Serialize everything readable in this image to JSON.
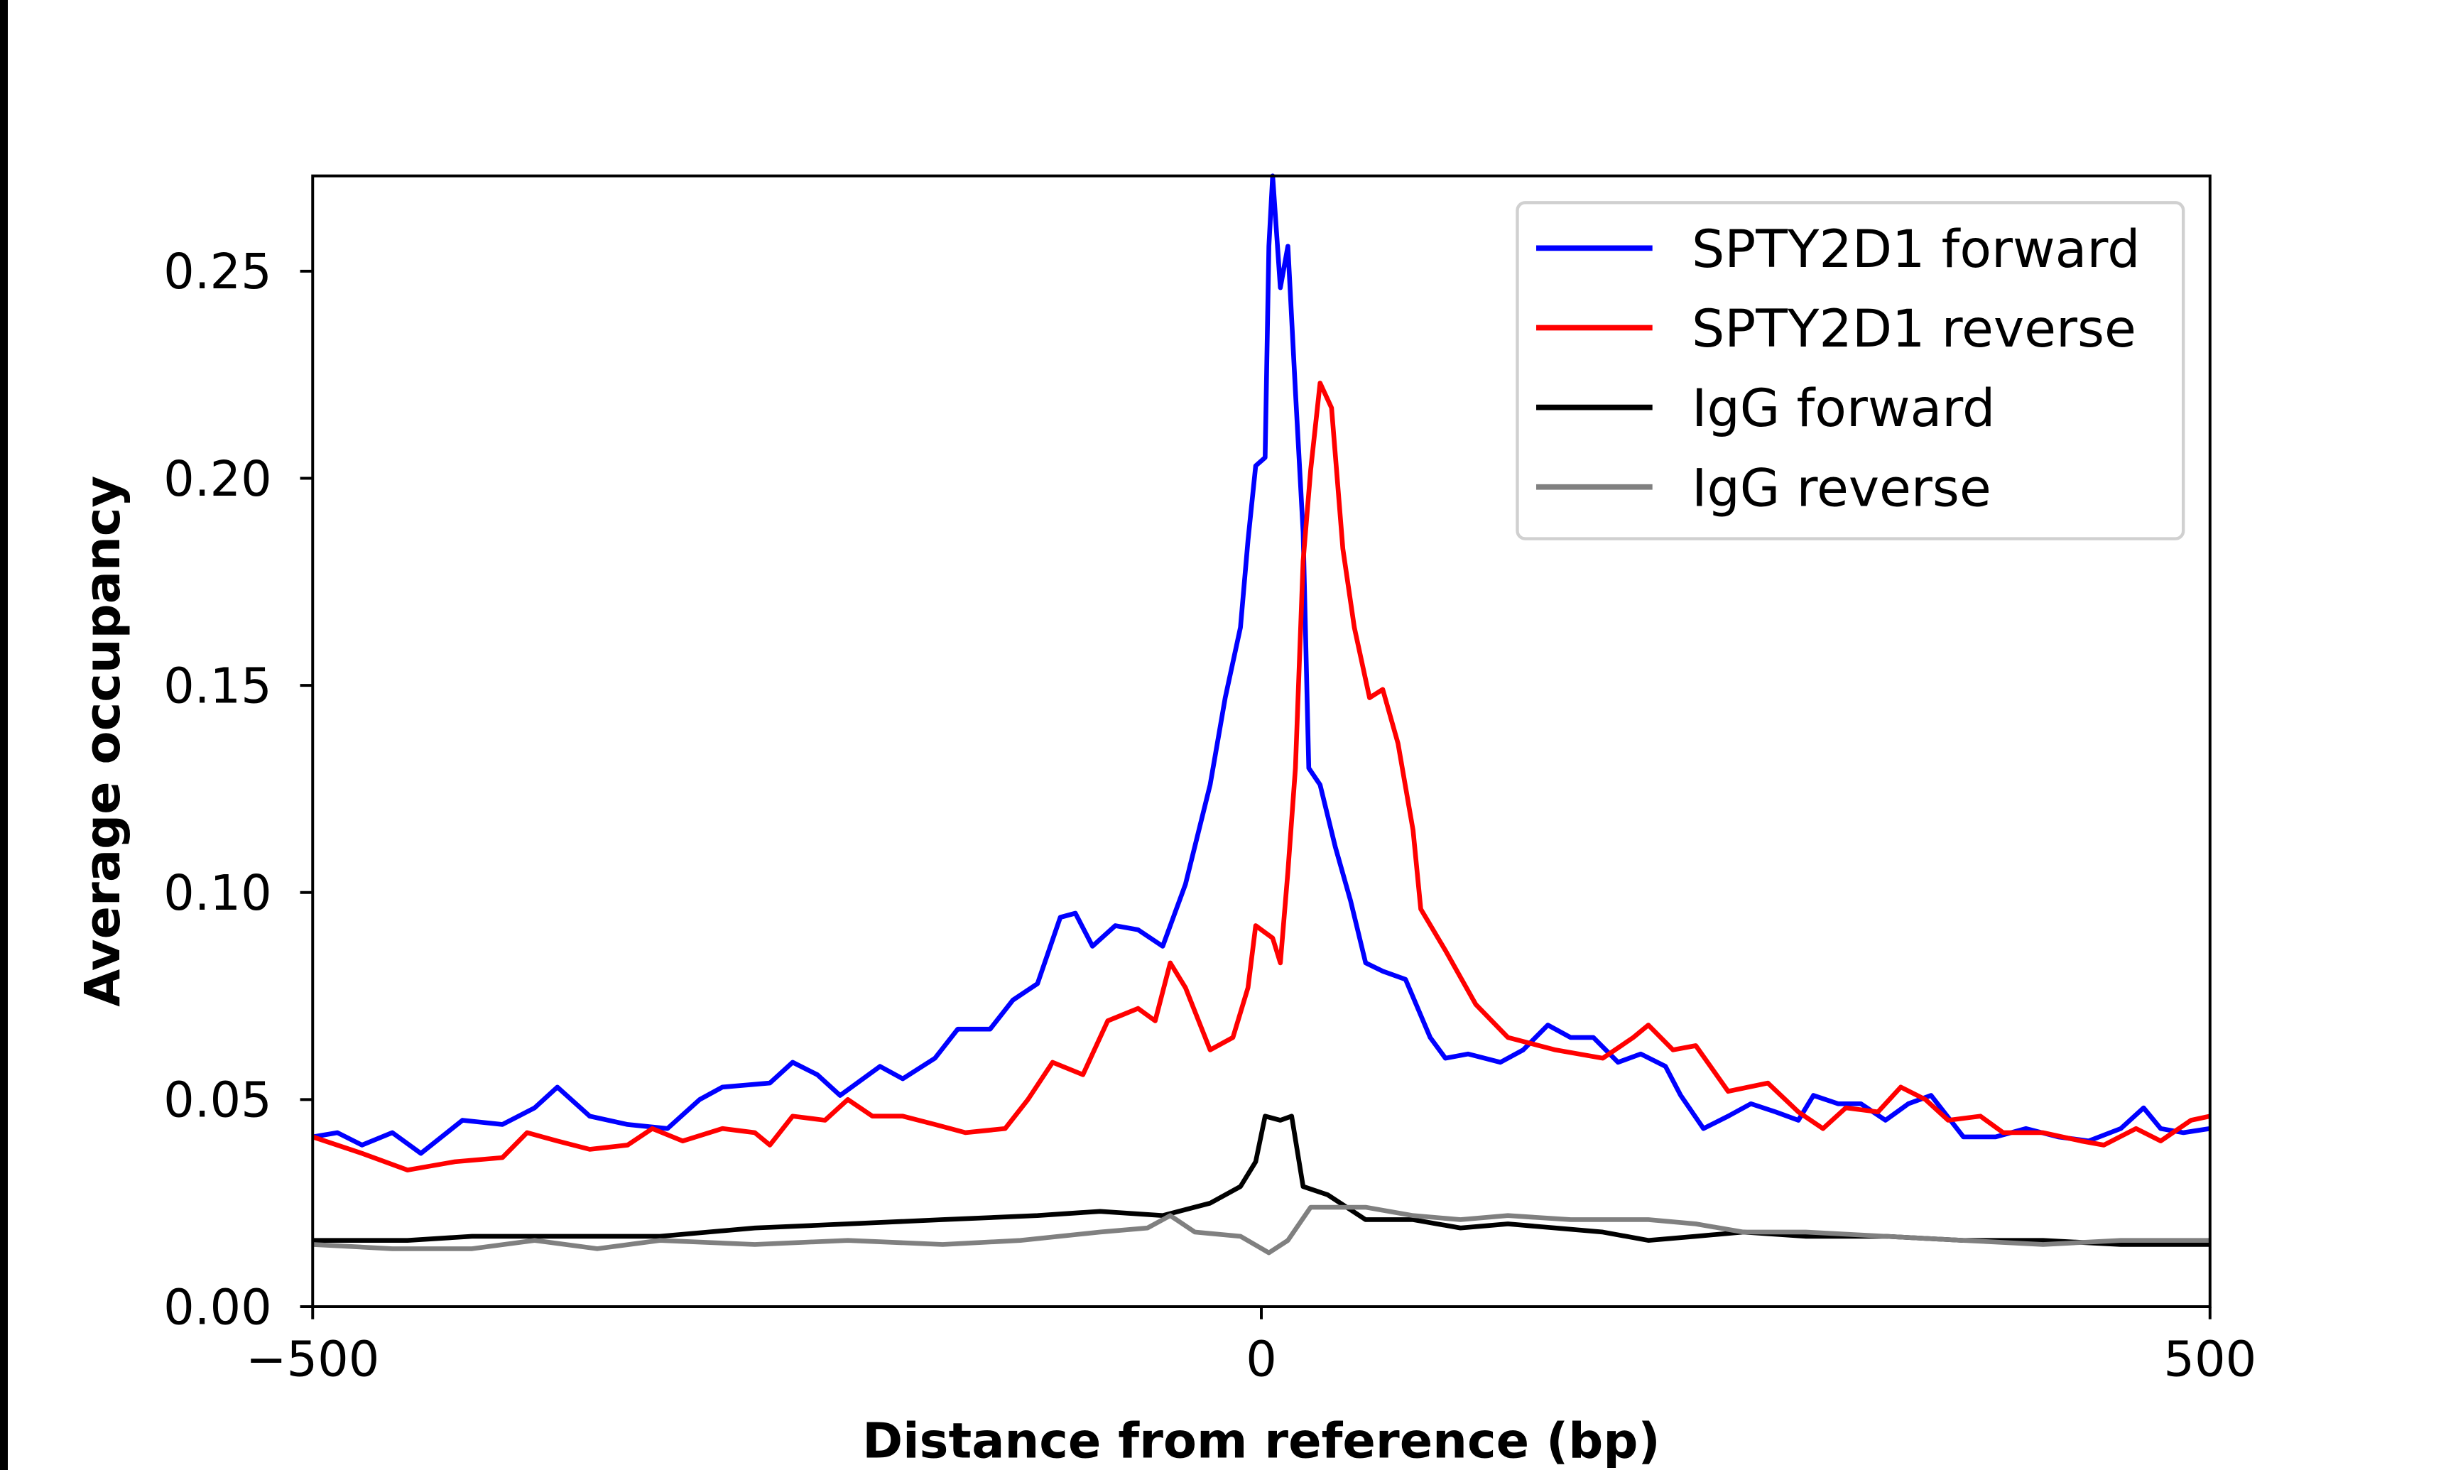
{
  "chart_data": {
    "type": "line",
    "title": "",
    "xlabel": "Distance from reference (bp)",
    "ylabel": "Average occupancy",
    "xlim": [
      -500,
      500
    ],
    "ylim": [
      0,
      0.273
    ],
    "xticks": [
      -500,
      0,
      500
    ],
    "xtick_labels": [
      "−500",
      "0",
      "500"
    ],
    "yticks": [
      0,
      0.05,
      0.1,
      0.15,
      0.2,
      0.25
    ],
    "ytick_labels": [
      "0.00",
      "0.05",
      "0.10",
      "0.15",
      "0.20",
      "0.25"
    ],
    "grid": false,
    "legend_placement": "top-right",
    "series": [
      {
        "name": "SPTY2D1 forward",
        "color": "#0000ff",
        "x": [
          -500,
          -487,
          -474,
          -458,
          -443,
          -421,
          -400,
          -383,
          -371,
          -354,
          -334,
          -313,
          -296,
          -284,
          -259,
          -247,
          -234,
          -222,
          -201,
          -189,
          -172,
          -160,
          -143,
          -131,
          -118,
          -106,
          -98,
          -89,
          -77,
          -65,
          -52,
          -40,
          -27,
          -19,
          -11,
          -7,
          -3,
          2,
          4,
          6,
          10,
          14,
          18,
          22,
          25,
          31,
          39,
          47,
          55,
          64,
          76,
          89,
          97,
          109,
          126,
          138,
          151,
          163,
          175,
          188,
          200,
          213,
          221,
          233,
          246,
          258,
          271,
          283,
          291,
          304,
          316,
          329,
          341,
          353,
          370,
          387,
          403,
          420,
          436,
          453,
          465,
          474,
          486,
          500
        ],
        "y": [
          0.041,
          0.042,
          0.039,
          0.042,
          0.037,
          0.045,
          0.044,
          0.048,
          0.053,
          0.046,
          0.044,
          0.043,
          0.05,
          0.053,
          0.054,
          0.059,
          0.056,
          0.051,
          0.058,
          0.055,
          0.06,
          0.067,
          0.067,
          0.074,
          0.078,
          0.094,
          0.095,
          0.087,
          0.092,
          0.091,
          0.087,
          0.102,
          0.126,
          0.147,
          0.164,
          0.185,
          0.203,
          0.205,
          0.256,
          0.273,
          0.246,
          0.256,
          0.221,
          0.187,
          0.13,
          0.126,
          0.111,
          0.098,
          0.083,
          0.081,
          0.079,
          0.065,
          0.06,
          0.061,
          0.059,
          0.062,
          0.068,
          0.065,
          0.065,
          0.059,
          0.061,
          0.058,
          0.051,
          0.043,
          0.046,
          0.049,
          0.047,
          0.045,
          0.051,
          0.049,
          0.049,
          0.045,
          0.049,
          0.051,
          0.041,
          0.041,
          0.043,
          0.041,
          0.04,
          0.043,
          0.048,
          0.043,
          0.042,
          0.043
        ]
      },
      {
        "name": "SPTY2D1 reverse",
        "color": "#ff0000",
        "x": [
          -500,
          -474,
          -450,
          -425,
          -400,
          -387,
          -371,
          -354,
          -334,
          -321,
          -305,
          -284,
          -267,
          -259,
          -247,
          -230,
          -218,
          -205,
          -189,
          -172,
          -156,
          -135,
          -123,
          -110,
          -94,
          -81,
          -65,
          -56,
          -48,
          -40,
          -27,
          -15,
          -7,
          -3,
          6,
          10,
          14,
          18,
          22,
          26,
          31,
          37,
          43,
          49,
          57,
          64,
          72,
          80,
          84,
          97,
          113,
          130,
          155,
          180,
          196,
          204,
          217,
          229,
          246,
          267,
          283,
          296,
          308,
          325,
          337,
          350,
          362,
          379,
          391,
          412,
          432,
          444,
          461,
          474,
          490,
          500
        ],
        "y": [
          0.041,
          0.037,
          0.033,
          0.035,
          0.036,
          0.042,
          0.04,
          0.038,
          0.039,
          0.043,
          0.04,
          0.043,
          0.042,
          0.039,
          0.046,
          0.045,
          0.05,
          0.046,
          0.046,
          0.044,
          0.042,
          0.043,
          0.05,
          0.059,
          0.056,
          0.069,
          0.072,
          0.069,
          0.083,
          0.077,
          0.062,
          0.065,
          0.077,
          0.092,
          0.089,
          0.083,
          0.105,
          0.13,
          0.18,
          0.202,
          0.223,
          0.217,
          0.183,
          0.164,
          0.147,
          0.149,
          0.136,
          0.115,
          0.096,
          0.086,
          0.073,
          0.065,
          0.062,
          0.06,
          0.065,
          0.068,
          0.062,
          0.063,
          0.052,
          0.054,
          0.047,
          0.043,
          0.048,
          0.047,
          0.053,
          0.05,
          0.045,
          0.046,
          0.042,
          0.042,
          0.04,
          0.039,
          0.043,
          0.04,
          0.045,
          0.046
        ]
      },
      {
        "name": "IgG forward",
        "color": "#000000",
        "x": [
          -500,
          -450,
          -416,
          -371,
          -317,
          -267,
          -218,
          -168,
          -118,
          -85,
          -52,
          -27,
          -11,
          -3,
          2,
          10,
          16,
          22,
          35,
          55,
          80,
          105,
          130,
          155,
          180,
          204,
          229,
          254,
          287,
          329,
          370,
          412,
          453,
          500
        ],
        "y": [
          0.016,
          0.016,
          0.017,
          0.017,
          0.017,
          0.019,
          0.02,
          0.021,
          0.022,
          0.023,
          0.022,
          0.025,
          0.029,
          0.035,
          0.046,
          0.045,
          0.046,
          0.029,
          0.027,
          0.021,
          0.021,
          0.019,
          0.02,
          0.019,
          0.018,
          0.016,
          0.017,
          0.018,
          0.017,
          0.017,
          0.016,
          0.016,
          0.015,
          0.015
        ]
      },
      {
        "name": "IgG reverse",
        "color": "#808080",
        "x": [
          -500,
          -458,
          -416,
          -383,
          -350,
          -317,
          -267,
          -218,
          -168,
          -127,
          -85,
          -60,
          -48,
          -35,
          -11,
          4,
          14,
          26,
          35,
          55,
          80,
          105,
          130,
          163,
          204,
          229,
          254,
          287,
          329,
          370,
          412,
          453,
          500
        ],
        "y": [
          0.015,
          0.014,
          0.014,
          0.016,
          0.014,
          0.016,
          0.015,
          0.016,
          0.015,
          0.016,
          0.018,
          0.019,
          0.022,
          0.018,
          0.017,
          0.013,
          0.016,
          0.024,
          0.024,
          0.024,
          0.022,
          0.021,
          0.022,
          0.021,
          0.021,
          0.02,
          0.018,
          0.018,
          0.017,
          0.016,
          0.015,
          0.016,
          0.016
        ]
      }
    ]
  }
}
